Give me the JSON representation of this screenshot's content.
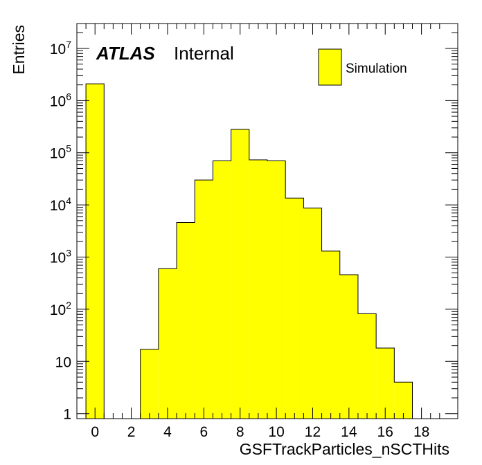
{
  "chart_data": {
    "type": "bar",
    "xlabel": "GSFTrackParticles_nSCTHits",
    "ylabel": "Entries",
    "log_y": true,
    "xlim": [
      -1,
      20
    ],
    "ylim": [
      0.8,
      30000000
    ],
    "bins": [
      {
        "x": 0,
        "value": 2100000
      },
      {
        "x": 1,
        "value": 0
      },
      {
        "x": 2,
        "value": 0
      },
      {
        "x": 3,
        "value": 17
      },
      {
        "x": 4,
        "value": 600
      },
      {
        "x": 5,
        "value": 4600
      },
      {
        "x": 6,
        "value": 30000
      },
      {
        "x": 7,
        "value": 70000
      },
      {
        "x": 8,
        "value": 280000
      },
      {
        "x": 9,
        "value": 73000
      },
      {
        "x": 10,
        "value": 70000
      },
      {
        "x": 11,
        "value": 13500
      },
      {
        "x": 12,
        "value": 8700
      },
      {
        "x": 13,
        "value": 1300
      },
      {
        "x": 14,
        "value": 460
      },
      {
        "x": 15,
        "value": 82
      },
      {
        "x": 16,
        "value": 18
      },
      {
        "x": 17,
        "value": 4
      }
    ],
    "x_ticks": [
      {
        "value": 0,
        "label": "0"
      },
      {
        "value": 2,
        "label": "2"
      },
      {
        "value": 4,
        "label": "4"
      },
      {
        "value": 6,
        "label": "6"
      },
      {
        "value": 8,
        "label": "8"
      },
      {
        "value": 10,
        "label": "10"
      },
      {
        "value": 12,
        "label": "12"
      },
      {
        "value": 14,
        "label": "14"
      },
      {
        "value": 16,
        "label": "16"
      },
      {
        "value": 18,
        "label": "18"
      }
    ],
    "y_ticks": [
      {
        "value": 1,
        "base": "1",
        "exp": ""
      },
      {
        "value": 10,
        "base": "10",
        "exp": ""
      },
      {
        "value": 100,
        "base": "10",
        "exp": "2"
      },
      {
        "value": 1000,
        "base": "10",
        "exp": "3"
      },
      {
        "value": 10000,
        "base": "10",
        "exp": "4"
      },
      {
        "value": 100000,
        "base": "10",
        "exp": "5"
      },
      {
        "value": 1000000,
        "base": "10",
        "exp": "6"
      },
      {
        "value": 10000000,
        "base": "10",
        "exp": "7"
      }
    ],
    "series": [
      {
        "name": "Simulation",
        "color": "#ffff00"
      }
    ],
    "legend_position": "top-right",
    "label_atlas": "ATLAS",
    "label_status": "Internal",
    "fill_color": "#ffff00",
    "line_color": "#000000"
  }
}
